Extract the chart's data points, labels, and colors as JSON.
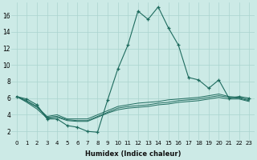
{
  "xlabel": "Humidex (Indice chaleur)",
  "ylabel": "",
  "background_color": "#cceae6",
  "grid_color": "#aad4cf",
  "line_color": "#1e6b5e",
  "xlim": [
    -0.5,
    23.5
  ],
  "ylim": [
    1,
    17.5
  ],
  "yticks": [
    2,
    4,
    6,
    8,
    10,
    12,
    14,
    16
  ],
  "xticks": [
    0,
    1,
    2,
    3,
    4,
    5,
    6,
    7,
    8,
    9,
    10,
    11,
    12,
    13,
    14,
    15,
    16,
    17,
    18,
    19,
    20,
    21,
    22,
    23
  ],
  "series_main": [
    6.2,
    5.9,
    5.2,
    3.5,
    3.5,
    2.7,
    2.5,
    2.0,
    1.9,
    5.8,
    9.5,
    12.4,
    16.5,
    15.5,
    17.0,
    14.5,
    12.4,
    8.5,
    8.2,
    7.2,
    8.2,
    6.0,
    6.2,
    6.0
  ],
  "series_flat1": [
    6.2,
    5.7,
    5.0,
    3.8,
    4.0,
    3.5,
    3.5,
    3.5,
    4.0,
    4.5,
    5.0,
    5.2,
    5.4,
    5.5,
    5.6,
    5.8,
    5.9,
    6.0,
    6.1,
    6.3,
    6.5,
    6.2,
    6.1,
    5.8
  ],
  "series_flat2": [
    6.2,
    5.6,
    4.9,
    3.7,
    3.8,
    3.4,
    3.3,
    3.3,
    3.8,
    4.3,
    4.8,
    5.0,
    5.1,
    5.2,
    5.4,
    5.5,
    5.7,
    5.8,
    5.9,
    6.1,
    6.3,
    6.1,
    6.0,
    5.7
  ],
  "series_flat3": [
    6.2,
    5.5,
    4.7,
    3.6,
    3.7,
    3.3,
    3.2,
    3.2,
    3.7,
    4.2,
    4.6,
    4.8,
    4.9,
    5.0,
    5.2,
    5.3,
    5.5,
    5.6,
    5.7,
    5.9,
    6.1,
    5.9,
    5.9,
    5.6
  ]
}
